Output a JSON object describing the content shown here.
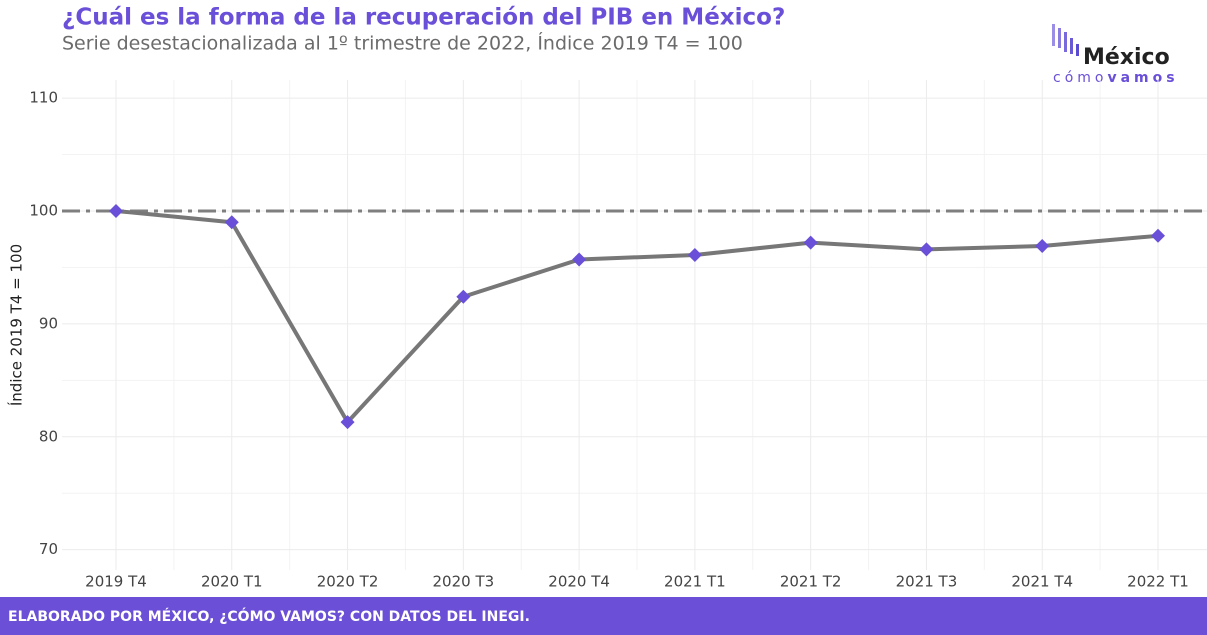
{
  "chart_data": {
    "type": "line",
    "title": "¿Cuál es la forma de la recuperación del PIB en México?",
    "subtitle": "Serie desestacionalizada al 1º trimestre de 2022, Índice 2019 T4 = 100",
    "y_label": "Índice 2019 T4 = 100",
    "categories": [
      "2019 T4",
      "2020 T1",
      "2020 T2",
      "2020 T3",
      "2020 T4",
      "2021 T1",
      "2021 T2",
      "2021 T3",
      "2021 T4",
      "2022 T1"
    ],
    "series": [
      {
        "name": "PIB",
        "color": "#777777",
        "marker_color": "#6a4fd8",
        "values": [
          100,
          99.0,
          81.3,
          92.4,
          95.7,
          96.1,
          97.2,
          96.6,
          96.9,
          97.8
        ]
      }
    ],
    "reference_line": {
      "value": 100,
      "color": "#7f7f7f"
    },
    "ylim": [
      68.2,
      111.6
    ],
    "yticks": [
      70,
      80,
      90,
      100,
      110
    ],
    "grid": true,
    "footer": "ELABORADO POR MÉXICO, ¿CÓMO VAMOS? CON DATOS DEL INEGI.",
    "logo": {
      "name": "México",
      "tagline_1": "cómo",
      "tagline_2": "vamos"
    }
  }
}
